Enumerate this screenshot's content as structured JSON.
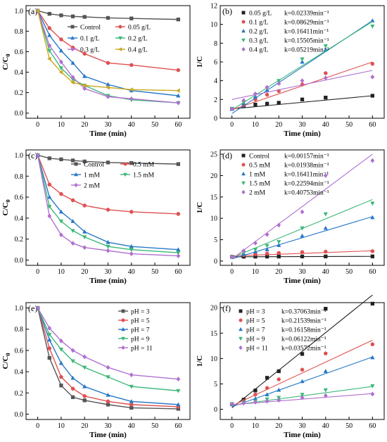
{
  "chart_data": [
    {
      "id": "a",
      "type": "line",
      "panel_label": "(a)",
      "xlabel": "Time (min)",
      "ylabel": "C/C0",
      "xlim": [
        -5,
        65
      ],
      "ylim": [
        -0.05,
        1.05
      ],
      "xticks": [
        0,
        10,
        20,
        30,
        40,
        50,
        60
      ],
      "yticks": [
        0.0,
        0.2,
        0.4,
        0.6,
        0.8,
        1.0
      ],
      "ytick_labels": [
        "0.0",
        "0.2",
        "0.4",
        "0.6",
        "0.8",
        "1.0"
      ],
      "x": [
        0,
        5,
        10,
        15,
        20,
        30,
        40,
        60
      ],
      "legend_columns": 2,
      "series": [
        {
          "name": "Control",
          "color": "#555555",
          "marker": "square",
          "values": [
            1.0,
            0.97,
            0.955,
            0.945,
            0.94,
            0.93,
            0.925,
            0.915
          ]
        },
        {
          "name": "0.05 g/L",
          "color": "#e05050",
          "marker": "circle",
          "values": [
            1.0,
            0.83,
            0.72,
            0.64,
            0.58,
            0.49,
            0.47,
            0.42
          ]
        },
        {
          "name": "0.1 g/L",
          "color": "#2878c8",
          "marker": "triangle",
          "values": [
            1.0,
            0.76,
            0.61,
            0.49,
            0.36,
            0.28,
            0.22,
            0.17
          ]
        },
        {
          "name": "0.2 g/L",
          "color": "#3cb878",
          "marker": "triangle-down",
          "values": [
            1.0,
            0.61,
            0.44,
            0.33,
            0.27,
            0.17,
            0.13,
            0.1
          ]
        },
        {
          "name": "0.3 g/L",
          "color": "#b070d0",
          "marker": "diamond",
          "values": [
            1.0,
            0.66,
            0.5,
            0.35,
            0.24,
            0.16,
            0.14,
            0.1
          ]
        },
        {
          "name": "0.4 g/L",
          "color": "#c8a820",
          "marker": "triangle-left",
          "values": [
            1.0,
            0.53,
            0.4,
            0.3,
            0.27,
            0.25,
            0.23,
            0.22
          ]
        }
      ]
    },
    {
      "id": "b",
      "type": "scatter",
      "panel_label": "(b)",
      "xlabel": "Time (min)",
      "ylabel": "1/C",
      "xlim": [
        -5,
        65
      ],
      "ylim": [
        0,
        12
      ],
      "xticks": [
        0,
        10,
        20,
        30,
        40,
        50,
        60
      ],
      "yticks": [
        0,
        2,
        4,
        6,
        8,
        10,
        12
      ],
      "ytick_labels": [
        "0",
        "2",
        "4",
        "6",
        "8",
        "10",
        "12"
      ],
      "x": [
        0,
        5,
        10,
        15,
        20,
        30,
        40,
        60
      ],
      "legend_columns": 1,
      "series": [
        {
          "name": "0.05 g/L",
          "k_label": "k=0.02339min⁻¹",
          "color": "#222222",
          "marker": "square",
          "values": [
            1.0,
            1.35,
            1.45,
            1.55,
            1.65,
            2.0,
            2.2,
            2.4
          ],
          "fit": [
            1.0,
            2.4
          ]
        },
        {
          "name": "0.1 g/L",
          "k_label": "k=0.08629min⁻¹",
          "color": "#e05050",
          "marker": "circle",
          "values": [
            1.0,
            1.4,
            2.0,
            2.5,
            2.9,
            3.6,
            4.8,
            5.8
          ],
          "fit": [
            0.9,
            6.0
          ]
        },
        {
          "name": "0.2 g/L",
          "k_label": "k=0.16411min⁻¹",
          "color": "#2878c8",
          "marker": "triangle",
          "values": [
            1.0,
            1.6,
            2.3,
            3.0,
            3.8,
            6.0,
            7.3,
            10.4
          ],
          "fit": [
            0.5,
            10.4
          ]
        },
        {
          "name": "0.3 g/L",
          "k_label": "k=0.15505min⁻¹",
          "color": "#3cb878",
          "marker": "triangle-down",
          "values": [
            1.0,
            1.7,
            2.5,
            3.2,
            4.0,
            6.3,
            7.7,
            9.8
          ],
          "fit": [
            0.9,
            10.3
          ]
        },
        {
          "name": "0.4 g/L",
          "k_label": "k=0.05219min⁻¹",
          "color": "#b070d0",
          "marker": "diamond",
          "values": [
            1.0,
            1.9,
            2.6,
            3.3,
            3.7,
            4.0,
            4.3,
            4.4
          ],
          "fit": [
            2.0,
            5.1
          ]
        }
      ]
    },
    {
      "id": "c",
      "type": "line",
      "panel_label": "(c)",
      "xlabel": "Time (min)",
      "ylabel": "C/C0",
      "xlim": [
        -5,
        65
      ],
      "ylim": [
        -0.05,
        1.05
      ],
      "xticks": [
        0,
        10,
        20,
        30,
        40,
        50,
        60
      ],
      "yticks": [
        0.0,
        0.2,
        0.4,
        0.6,
        0.8,
        1.0
      ],
      "ytick_labels": [
        "0.0",
        "0.2",
        "0.4",
        "0.6",
        "0.8",
        "1.0"
      ],
      "x": [
        0,
        5,
        10,
        15,
        20,
        30,
        40,
        60
      ],
      "legend_columns": 2,
      "series": [
        {
          "name": "Control",
          "color": "#555555",
          "marker": "square",
          "values": [
            1.0,
            0.97,
            0.96,
            0.95,
            0.94,
            0.93,
            0.925,
            0.915
          ]
        },
        {
          "name": "0.5 mM",
          "color": "#e05050",
          "marker": "circle",
          "values": [
            1.0,
            0.72,
            0.63,
            0.57,
            0.52,
            0.48,
            0.46,
            0.44
          ]
        },
        {
          "name": "1 mM",
          "color": "#2878c8",
          "marker": "triangle",
          "values": [
            1.0,
            0.6,
            0.46,
            0.37,
            0.27,
            0.17,
            0.13,
            0.1
          ]
        },
        {
          "name": "1.5 mM",
          "color": "#3cb878",
          "marker": "triangle-down",
          "values": [
            1.0,
            0.51,
            0.37,
            0.28,
            0.22,
            0.13,
            0.1,
            0.07
          ]
        },
        {
          "name": "2 mM",
          "color": "#b070d0",
          "marker": "diamond",
          "values": [
            1.0,
            0.42,
            0.24,
            0.16,
            0.12,
            0.09,
            0.06,
            0.04
          ]
        }
      ]
    },
    {
      "id": "d",
      "type": "scatter",
      "panel_label": "(d)",
      "xlabel": "Time (min)",
      "ylabel": "1/C",
      "xlim": [
        -5,
        65
      ],
      "ylim": [
        -1,
        26
      ],
      "xticks": [
        0,
        10,
        20,
        30,
        40,
        50,
        60
      ],
      "yticks": [
        0,
        5,
        10,
        15,
        20,
        25
      ],
      "ytick_labels": [
        "0",
        "5",
        "10",
        "15",
        "20",
        "25"
      ],
      "x": [
        0,
        5,
        10,
        15,
        20,
        30,
        40,
        60
      ],
      "legend_columns": 1,
      "series": [
        {
          "name": "Control",
          "k_label": "k=0.00157min⁻¹",
          "color": "#222222",
          "marker": "square",
          "values": [
            1.0,
            1.03,
            1.04,
            1.05,
            1.06,
            1.08,
            1.08,
            1.09
          ],
          "fit": [
            1.0,
            1.1
          ]
        },
        {
          "name": "0.5 mM",
          "k_label": "k=0.01938min⁻¹",
          "color": "#e05050",
          "marker": "circle",
          "values": [
            1.0,
            1.4,
            1.6,
            1.75,
            1.9,
            2.1,
            2.2,
            2.3
          ],
          "fit": [
            1.2,
            2.4
          ]
        },
        {
          "name": "1 mM",
          "k_label": "k=0.16411min⁻¹",
          "color": "#2878c8",
          "marker": "triangle",
          "values": [
            1.0,
            1.7,
            2.2,
            2.7,
            3.7,
            5.9,
            7.7,
            10.2
          ],
          "fit": [
            0.5,
            10.4
          ]
        },
        {
          "name": "1.5 mM",
          "k_label": "k=0.22594min⁻¹",
          "color": "#3cb878",
          "marker": "triangle-down",
          "values": [
            1.0,
            2.0,
            2.7,
            3.6,
            4.5,
            7.7,
            11.0,
            13.5
          ],
          "fit": [
            0.8,
            14.4
          ]
        },
        {
          "name": "2 mM",
          "k_label": "k=0.40753min⁻¹",
          "color": "#b070d0",
          "marker": "diamond",
          "values": [
            1.0,
            2.4,
            4.2,
            6.2,
            8.4,
            11.5,
            20.0,
            23.5
          ],
          "fit": [
            0.5,
            25.0
          ]
        }
      ]
    },
    {
      "id": "e",
      "type": "line",
      "panel_label": "(e)",
      "xlabel": "Time (min)",
      "ylabel": "C/C0",
      "xlim": [
        -5,
        65
      ],
      "ylim": [
        -0.05,
        1.05
      ],
      "xticks": [
        0,
        10,
        20,
        30,
        40,
        50,
        60
      ],
      "yticks": [
        0.0,
        0.2,
        0.4,
        0.6,
        0.8,
        1.0
      ],
      "ytick_labels": [
        "0.0",
        "0.2",
        "0.4",
        "0.6",
        "0.8",
        "1.0"
      ],
      "x": [
        0,
        5,
        10,
        15,
        20,
        30,
        40,
        60
      ],
      "legend_columns": 1,
      "series": [
        {
          "name": "pH = 3",
          "color": "#555555",
          "marker": "square",
          "values": [
            1.0,
            0.53,
            0.27,
            0.16,
            0.13,
            0.09,
            0.06,
            0.05
          ]
        },
        {
          "name": "pH = 5",
          "color": "#e05050",
          "marker": "circle",
          "values": [
            1.0,
            0.62,
            0.35,
            0.24,
            0.17,
            0.12,
            0.09,
            0.07
          ]
        },
        {
          "name": "pH = 7",
          "color": "#2878c8",
          "marker": "triangle",
          "values": [
            1.0,
            0.7,
            0.48,
            0.34,
            0.26,
            0.18,
            0.12,
            0.09
          ]
        },
        {
          "name": "pH = 9",
          "color": "#3cb878",
          "marker": "triangle-down",
          "values": [
            1.0,
            0.75,
            0.61,
            0.5,
            0.44,
            0.35,
            0.26,
            0.22
          ]
        },
        {
          "name": "pH = 11",
          "color": "#b070d0",
          "marker": "diamond",
          "values": [
            1.0,
            0.81,
            0.69,
            0.6,
            0.54,
            0.44,
            0.37,
            0.33
          ]
        }
      ]
    },
    {
      "id": "f",
      "type": "scatter",
      "panel_label": "(f)",
      "xlabel": "Time (min)",
      "ylabel": "1/C",
      "xlim": [
        -5,
        65
      ],
      "ylim": [
        -2,
        21
      ],
      "xticks": [
        0,
        10,
        20,
        30,
        40,
        50,
        60
      ],
      "yticks": [
        0,
        5,
        10,
        15,
        20
      ],
      "ytick_labels": [
        "0",
        "5",
        "10",
        "15",
        "20"
      ],
      "x": [
        0,
        5,
        10,
        15,
        20,
        30,
        40,
        60
      ],
      "legend_columns": 1,
      "series": [
        {
          "name": "pH = 3",
          "k_label": "k=0.37063min⁻¹",
          "color": "#222222",
          "marker": "square",
          "values": [
            1.0,
            1.9,
            3.7,
            6.2,
            7.5,
            10.9,
            19.8,
            20.8
          ],
          "fit": [
            0.3,
            22.5
          ]
        },
        {
          "name": "pH = 5",
          "k_label": "k=0.21539min⁻¹",
          "color": "#e05050",
          "marker": "circle",
          "values": [
            1.0,
            1.6,
            2.9,
            4.2,
            5.9,
            7.8,
            11.0,
            12.8
          ],
          "fit": [
            0.7,
            13.6
          ]
        },
        {
          "name": "pH = 7",
          "k_label": "k=0.16158min⁻¹",
          "color": "#2878c8",
          "marker": "triangle",
          "values": [
            1.0,
            1.4,
            2.1,
            2.9,
            3.8,
            5.5,
            7.5,
            10.2
          ],
          "fit": [
            0.5,
            10.3
          ]
        },
        {
          "name": "pH = 9",
          "k_label": "k=0.06122min⁻¹",
          "color": "#3cb878",
          "marker": "triangle-down",
          "values": [
            1.0,
            1.3,
            1.6,
            2.0,
            2.3,
            2.9,
            3.8,
            4.6
          ],
          "fit": [
            0.8,
            4.5
          ]
        },
        {
          "name": "pH = 11",
          "k_label": "k=0.03572min⁻¹",
          "color": "#b070d0",
          "marker": "diamond",
          "values": [
            1.0,
            1.2,
            1.4,
            1.6,
            1.8,
            2.3,
            2.7,
            3.0
          ],
          "fit": [
            0.9,
            3.1
          ]
        }
      ]
    }
  ]
}
